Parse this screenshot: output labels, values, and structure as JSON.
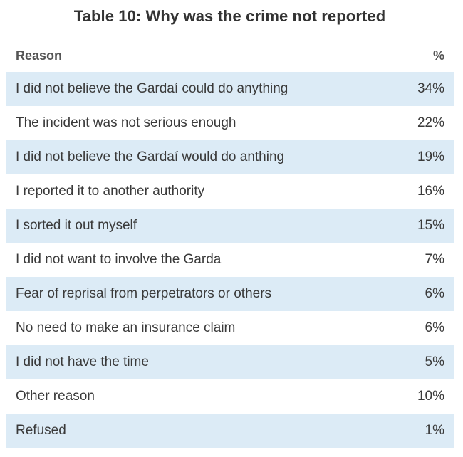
{
  "title": "Table 10: Why was the crime not reported",
  "table": {
    "headers": {
      "reason": "Reason",
      "percent": "%"
    },
    "rows": [
      {
        "reason": "I did not believe the Gardaí could do anything",
        "percent": "34%"
      },
      {
        "reason": "The incident was not serious enough",
        "percent": "22%"
      },
      {
        "reason": "I did not believe the Gardaí would do anthing",
        "percent": "19%"
      },
      {
        "reason": "I reported it to another authority",
        "percent": "16%"
      },
      {
        "reason": "I sorted it out myself",
        "percent": "15%"
      },
      {
        "reason": "I did not want to involve the Garda",
        "percent": "7%"
      },
      {
        "reason": "Fear of reprisal from perpetrators or others",
        "percent": "6%"
      },
      {
        "reason": "No need to make an insurance claim",
        "percent": "6%"
      },
      {
        "reason": "I did not have the time",
        "percent": "5%"
      },
      {
        "reason": "Other reason",
        "percent": "10%"
      },
      {
        "reason": "Refused",
        "percent": "1%"
      }
    ]
  },
  "colors": {
    "shaded_row": "#dcebf6",
    "text": "#3a3a3a",
    "header_text": "#555555"
  }
}
